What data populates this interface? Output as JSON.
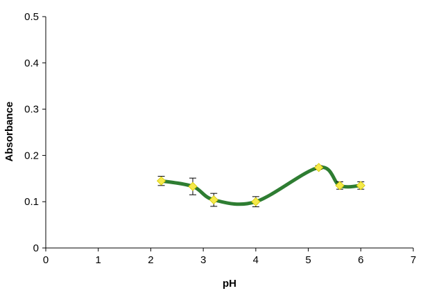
{
  "chart_data": {
    "type": "line",
    "title": "",
    "xlabel": "pH",
    "ylabel": "Absorbance",
    "xlim": [
      0,
      7
    ],
    "ylim": [
      0,
      0.5
    ],
    "x_ticks": [
      0,
      1,
      2,
      3,
      4,
      5,
      6,
      7
    ],
    "x_tick_labels": [
      "0",
      "1",
      "2",
      "3",
      "4",
      "5",
      "6",
      "7"
    ],
    "y_ticks": [
      0,
      0.1,
      0.2,
      0.3,
      0.4,
      0.5
    ],
    "y_tick_labels": [
      "0",
      "0.1",
      "0.2",
      "0.3",
      "0.4",
      "0.5"
    ],
    "grid": false,
    "legend": "none",
    "series": [
      {
        "x": [
          2.2,
          2.8,
          3.2,
          4.0,
          5.2,
          5.6,
          6.0
        ],
        "y": [
          0.145,
          0.133,
          0.104,
          0.1,
          0.174,
          0.135,
          0.135
        ],
        "error": [
          0.01,
          0.018,
          0.014,
          0.011,
          0.004,
          0.008,
          0.008
        ],
        "line_color": "#2e7d32",
        "marker_color": "#f5e94a",
        "marker": "diamond",
        "smooth": true
      }
    ]
  }
}
